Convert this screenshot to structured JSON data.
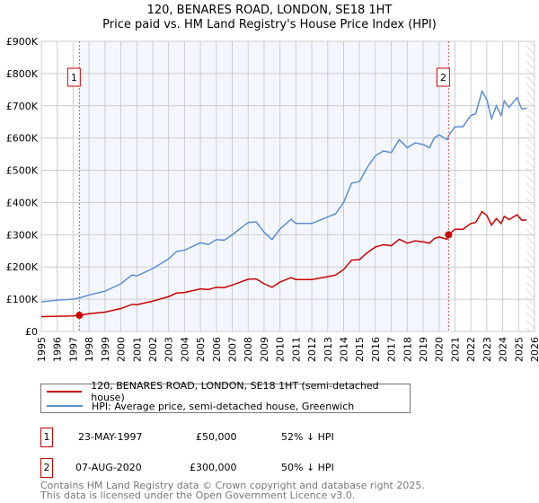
{
  "chart_data": {
    "type": "line",
    "title": "120, BENARES ROAD, LONDON, SE18 1HT",
    "subtitle": "Price paid vs. HM Land Registry's House Price Index (HPI)",
    "xlim": [
      1995,
      2026
    ],
    "ylim": [
      0,
      900000
    ],
    "y_ticks": [
      "£0",
      "£100K",
      "£200K",
      "£300K",
      "£400K",
      "£500K",
      "£600K",
      "£700K",
      "£800K",
      "£900K"
    ],
    "x_ticks": [
      "1995",
      "1996",
      "1997",
      "1998",
      "1999",
      "2000",
      "2001",
      "2002",
      "2003",
      "2004",
      "2005",
      "2006",
      "2007",
      "2008",
      "2009",
      "2010",
      "2011",
      "2012",
      "2013",
      "2014",
      "2015",
      "2016",
      "2017",
      "2018",
      "2019",
      "2020",
      "2021",
      "2022",
      "2023",
      "2024",
      "2025",
      "2026"
    ],
    "grid": true,
    "series": [
      {
        "name": "120, BENARES ROAD, LONDON, SE18 1HT (semi-detached house)",
        "color": "#cc0000",
        "x": [
          1995,
          1996,
          1997,
          1997.4,
          1998,
          1999,
          2000,
          2000.7,
          2001,
          2002,
          2003,
          2003.5,
          2004,
          2005,
          2005.5,
          2006,
          2006.5,
          2007,
          2008,
          2008.5,
          2009,
          2009.5,
          2010,
          2010.7,
          2011,
          2012,
          2013,
          2013.5,
          2014,
          2014.5,
          2015,
          2015.5,
          2016,
          2016.5,
          2017,
          2017.5,
          2018,
          2018.5,
          2019,
          2019.4,
          2019.7,
          2020,
          2020.5,
          2020.6,
          2021,
          2021.5,
          2022,
          2022.3,
          2022.7,
          2023,
          2023.3,
          2023.6,
          2023.9,
          2024.1,
          2024.4,
          2024.9,
          2025.2,
          2025.5
        ],
        "y": [
          46000,
          47000,
          48000,
          50000,
          55000,
          60000,
          71000,
          84000,
          83000,
          94000,
          108000,
          119000,
          121000,
          132000,
          130000,
          137000,
          136000,
          144000,
          162000,
          163000,
          148000,
          137000,
          153000,
          167000,
          161000,
          161000,
          170000,
          175000,
          192000,
          221000,
          223000,
          245000,
          262000,
          269000,
          266000,
          286000,
          274000,
          281000,
          278000,
          274000,
          288000,
          293000,
          286000,
          300000,
          317000,
          317000,
          335000,
          338000,
          372000,
          360000,
          330000,
          350000,
          335000,
          357000,
          347000,
          362000,
          345000,
          346000
        ]
      },
      {
        "name": "HPI: Average price, semi-detached house, Greenwich",
        "color": "#5b8ed4",
        "x": [
          1995,
          1996,
          1997,
          1997.4,
          1998,
          1999,
          2000,
          2000.7,
          2001,
          2002,
          2003,
          2003.5,
          2004,
          2005,
          2005.5,
          2006,
          2006.5,
          2007,
          2008,
          2008.5,
          2009,
          2009.5,
          2010,
          2010.7,
          2011,
          2012,
          2013,
          2013.5,
          2014,
          2014.5,
          2015,
          2015.5,
          2016,
          2016.5,
          2017,
          2017.5,
          2018,
          2018.5,
          2019,
          2019.4,
          2019.7,
          2020,
          2020.5,
          2020.7,
          2021,
          2021.5,
          2022,
          2022.3,
          2022.7,
          2023,
          2023.3,
          2023.6,
          2023.9,
          2024.1,
          2024.4,
          2024.9,
          2025.2,
          2025.5
        ],
        "y": [
          92000,
          97000,
          100000,
          104000,
          113000,
          125000,
          148000,
          175000,
          172000,
          195000,
          225000,
          248000,
          252000,
          275000,
          270000,
          285000,
          283000,
          300000,
          338000,
          340000,
          308000,
          285000,
          318000,
          348000,
          335000,
          335000,
          355000,
          365000,
          400000,
          460000,
          465000,
          510000,
          545000,
          560000,
          555000,
          595000,
          570000,
          585000,
          580000,
          570000,
          600000,
          610000,
          595000,
          615000,
          635000,
          635000,
          670000,
          675000,
          745000,
          720000,
          660000,
          700000,
          670000,
          715000,
          695000,
          725000,
          690000,
          692000
        ]
      }
    ],
    "sales": [
      {
        "label": "1",
        "x": 1997.39,
        "y": 50000
      },
      {
        "label": "2",
        "x": 2020.6,
        "y": 300000
      }
    ],
    "shaded_range": [
      1997.39,
      2020.6
    ],
    "forecast_hatch_from": 2025.5
  },
  "legend": {
    "red": "120, BENARES ROAD, LONDON, SE18 1HT (semi-detached house)",
    "blue": "HPI: Average price, semi-detached house, Greenwich"
  },
  "table": [
    {
      "num": "1",
      "date": "23-MAY-1997",
      "price": "£50,000",
      "hpi": "52% ↓ HPI"
    },
    {
      "num": "2",
      "date": "07-AUG-2020",
      "price": "£300,000",
      "hpi": "50% ↓ HPI"
    }
  ],
  "footer": {
    "line1": "Contains HM Land Registry data © Crown copyright and database right 2025.",
    "line2": "This data is licensed under the Open Government Licence v3.0."
  }
}
